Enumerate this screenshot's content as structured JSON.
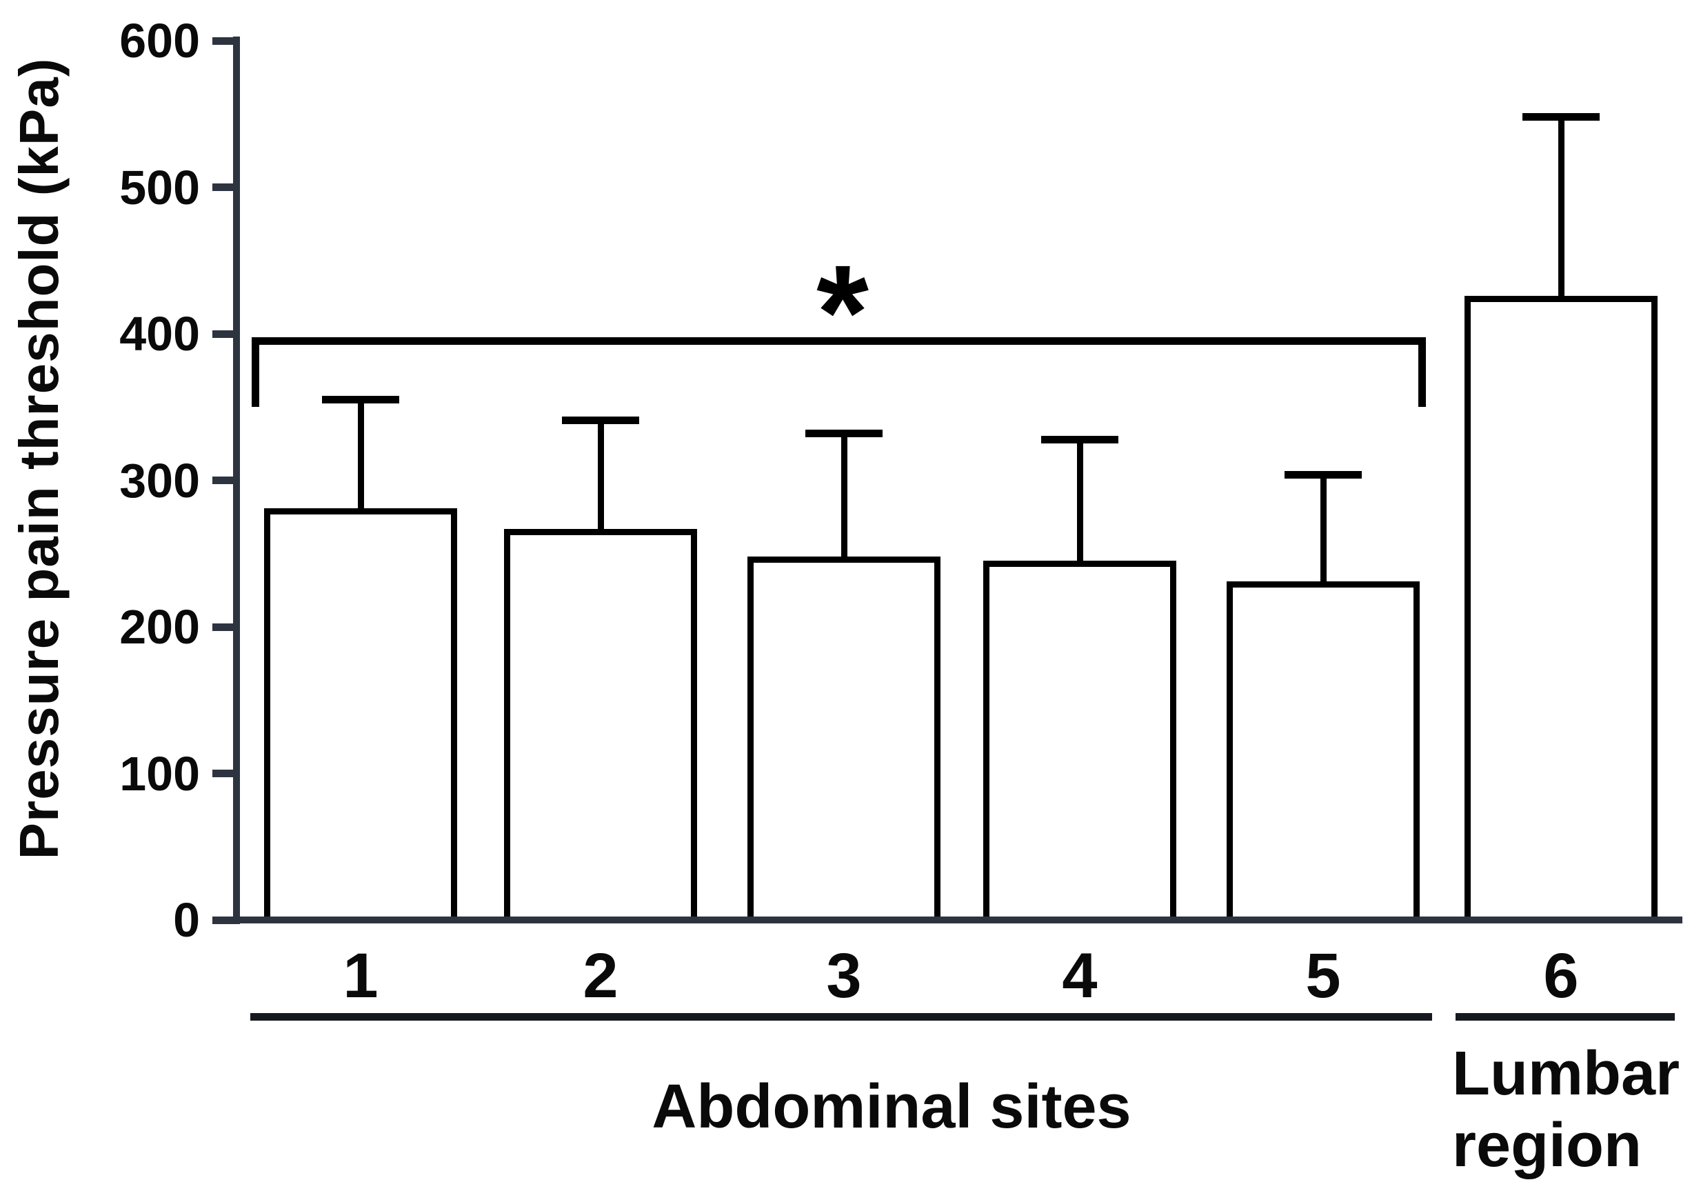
{
  "chart_data": {
    "type": "bar",
    "title": "",
    "ylabel": "Pressure pain threshold (kPa)",
    "xlabel": "",
    "ylim": [
      0,
      600
    ],
    "yticks": [
      0,
      100,
      200,
      300,
      400,
      500,
      600
    ],
    "categories": [
      "1",
      "2",
      "3",
      "4",
      "5",
      "6"
    ],
    "series": [
      {
        "name": "Pressure pain threshold mean (kPa)",
        "values": [
          281,
          267,
          248,
          245,
          231,
          426
        ],
        "errors_upper": [
          74,
          74,
          84,
          83,
          73,
          122
        ]
      }
    ],
    "groups": [
      {
        "label": "Abdominal sites",
        "categories": [
          "1",
          "2",
          "3",
          "4",
          "5"
        ]
      },
      {
        "label": "Lumbar region",
        "categories": [
          "6"
        ]
      }
    ],
    "significance": {
      "symbol": "*",
      "compared": "Abdominal sites (1-5) vs Lumbar region (6)",
      "bracket_level_kpa": 395,
      "bracket_spans_categories": [
        "1",
        "2",
        "3",
        "4",
        "5"
      ]
    },
    "legend": "none",
    "grid": "off",
    "bar_fill_color": "#ffffff",
    "bar_border_color": "#000000",
    "error_bar_color": "#000000",
    "axis_color": "#2d3440",
    "text_color": "#0a0a0a"
  }
}
